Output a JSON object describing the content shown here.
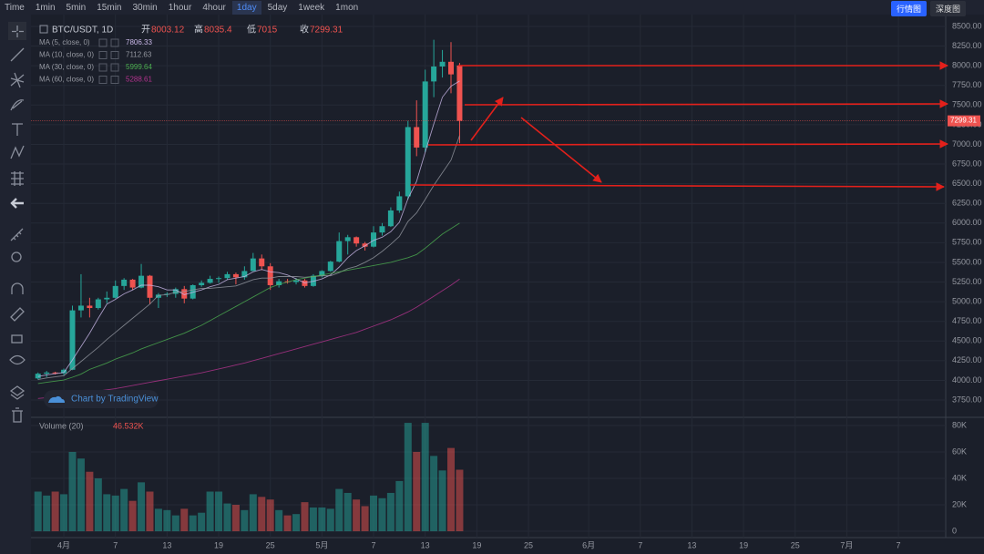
{
  "toolbar": {
    "intervals": [
      "Time",
      "1min",
      "5min",
      "15min",
      "30min",
      "1hour",
      "4hour",
      "1day",
      "5day",
      "1week",
      "1mon"
    ],
    "active": 7,
    "views": [
      "行情图",
      "深度图"
    ]
  },
  "chart_data": {
    "type": "candlestick",
    "title": "BTC/USDT, 1D",
    "ohlc_labels": [
      "开",
      "高",
      "低",
      "收"
    ],
    "up_color": "#26a69a",
    "down_color": "#ef5350",
    "grid": true,
    "x": [
      0,
      1,
      2,
      3,
      4,
      5,
      6,
      7,
      8,
      9,
      10,
      11,
      12,
      13,
      14,
      15,
      16,
      17,
      18,
      19,
      20,
      21,
      22,
      23,
      24,
      25,
      26,
      27,
      28,
      29,
      30,
      31,
      32,
      33,
      34,
      35,
      36,
      37,
      38,
      39,
      40,
      41,
      42,
      43,
      44,
      45,
      46,
      47,
      48,
      49
    ],
    "candles": [
      [
        4025,
        4100,
        4010,
        4085
      ],
      [
        4085,
        4120,
        4040,
        4100
      ],
      [
        4100,
        4110,
        4075,
        4090
      ],
      [
        4090,
        4150,
        4065,
        4135
      ],
      [
        4135,
        4950,
        4130,
        4890
      ],
      [
        4890,
        5350,
        4800,
        4950
      ],
      [
        4950,
        5050,
        4800,
        4920
      ],
      [
        4920,
        5050,
        4900,
        5030
      ],
      [
        5030,
        5130,
        4980,
        5050
      ],
      [
        5050,
        5270,
        5040,
        5200
      ],
      [
        5200,
        5300,
        5150,
        5280
      ],
      [
        5280,
        5290,
        5150,
        5180
      ],
      [
        5180,
        5480,
        5170,
        5330
      ],
      [
        5330,
        5340,
        4970,
        5050
      ],
      [
        5050,
        5110,
        4920,
        5090
      ],
      [
        5090,
        5120,
        5060,
        5100
      ],
      [
        5100,
        5180,
        5050,
        5160
      ],
      [
        5160,
        5200,
        4980,
        5040
      ],
      [
        5040,
        5220,
        5030,
        5210
      ],
      [
        5210,
        5270,
        5190,
        5240
      ],
      [
        5240,
        5330,
        5230,
        5290
      ],
      [
        5290,
        5320,
        5240,
        5300
      ],
      [
        5300,
        5380,
        5280,
        5350
      ],
      [
        5350,
        5370,
        5220,
        5310
      ],
      [
        5310,
        5450,
        5280,
        5390
      ],
      [
        5390,
        5620,
        5390,
        5550
      ],
      [
        5550,
        5600,
        5400,
        5450
      ],
      [
        5450,
        5490,
        5150,
        5210
      ],
      [
        5210,
        5290,
        5180,
        5260
      ],
      [
        5260,
        5290,
        5230,
        5250
      ],
      [
        5250,
        5300,
        5220,
        5270
      ],
      [
        5270,
        5290,
        5180,
        5200
      ],
      [
        5200,
        5350,
        5190,
        5330
      ],
      [
        5330,
        5400,
        5310,
        5390
      ],
      [
        5390,
        5520,
        5380,
        5510
      ],
      [
        5510,
        5880,
        5500,
        5770
      ],
      [
        5770,
        5850,
        5600,
        5820
      ],
      [
        5820,
        5830,
        5700,
        5740
      ],
      [
        5740,
        5760,
        5650,
        5700
      ],
      [
        5700,
        5960,
        5690,
        5880
      ],
      [
        5880,
        6000,
        5840,
        5960
      ],
      [
        5960,
        6200,
        5950,
        6160
      ],
      [
        6160,
        6400,
        6130,
        6340
      ],
      [
        6340,
        7300,
        6300,
        7220
      ],
      [
        7220,
        7560,
        6850,
        6960
      ],
      [
        6960,
        7950,
        6900,
        7800
      ],
      [
        7800,
        8330,
        7600,
        7990
      ],
      [
        7990,
        8200,
        7850,
        8050
      ],
      [
        8050,
        8300,
        7650,
        7890
      ],
      [
        8003.12,
        8035.4,
        7015.0,
        7299.31
      ]
    ],
    "xlim": [
      -0.5,
      105.5
    ],
    "xticks": [
      {
        "value": 3,
        "label": "4月"
      },
      {
        "value": 9,
        "label": "7"
      },
      {
        "value": 15,
        "label": "13"
      },
      {
        "value": 21,
        "label": "19"
      },
      {
        "value": 27,
        "label": "25"
      },
      {
        "value": 33,
        "label": "5月"
      },
      {
        "value": 39,
        "label": "7"
      },
      {
        "value": 45,
        "label": "13"
      },
      {
        "value": 51,
        "label": "19"
      },
      {
        "value": 57,
        "label": "25"
      },
      {
        "value": 64,
        "label": "6月"
      },
      {
        "value": 70,
        "label": "7"
      },
      {
        "value": 76,
        "label": "13"
      },
      {
        "value": 82,
        "label": "19"
      },
      {
        "value": 88,
        "label": "25"
      },
      {
        "value": 94,
        "label": "7月"
      },
      {
        "value": 100,
        "label": "7"
      }
    ],
    "ylim": [
      3565,
      8627
    ],
    "yticks": [
      {
        "value": 3750,
        "label": "3750.00"
      },
      {
        "value": 4000,
        "label": "4000.00"
      },
      {
        "value": 4250,
        "label": "4250.00"
      },
      {
        "value": 4500,
        "label": "4500.00"
      },
      {
        "value": 4750,
        "label": "4750.00"
      },
      {
        "value": 5000,
        "label": "5000.00"
      },
      {
        "value": 5250,
        "label": "5250.00"
      },
      {
        "value": 5500,
        "label": "5500.00"
      },
      {
        "value": 5750,
        "label": "5750.00"
      },
      {
        "value": 6000,
        "label": "6000.00"
      },
      {
        "value": 6250,
        "label": "6250.00"
      },
      {
        "value": 6500,
        "label": "6500.00"
      },
      {
        "value": 6750,
        "label": "6750.00"
      },
      {
        "value": 7000,
        "label": "7000.00"
      },
      {
        "value": 7250,
        "label": "7250.00"
      },
      {
        "value": 7500,
        "label": "7500.00"
      },
      {
        "value": 7750,
        "label": "7750.00"
      },
      {
        "value": 8000,
        "label": "8000.00"
      },
      {
        "value": 8250,
        "label": "8250.00"
      },
      {
        "value": 8500,
        "label": "8500.00"
      }
    ],
    "ma": [
      {
        "name": "MA (5, close, 0)",
        "color": "#c9b8e8",
        "values": [
          4050,
          4070,
          4085,
          4100,
          4260,
          4430,
          4600,
          4790,
          4970,
          5030,
          5100,
          5150,
          5210,
          5210,
          5190,
          5150,
          5150,
          5090,
          5120,
          5150,
          5190,
          5220,
          5280,
          5300,
          5320,
          5380,
          5410,
          5380,
          5370,
          5340,
          5290,
          5240,
          5260,
          5290,
          5340,
          5440,
          5560,
          5650,
          5710,
          5780,
          5820,
          5890,
          6010,
          6310,
          6530,
          6900,
          7260,
          7600,
          7740,
          7806.33
        ]
      },
      {
        "name": "MA (10, close, 0)",
        "color": "#9598a1",
        "values": [
          4010,
          4030,
          4045,
          4060,
          4150,
          4240,
          4330,
          4420,
          4520,
          4610,
          4700,
          4790,
          4880,
          4970,
          5080,
          5090,
          5120,
          5130,
          5150,
          5170,
          5170,
          5180,
          5190,
          5200,
          5240,
          5280,
          5300,
          5300,
          5320,
          5320,
          5320,
          5310,
          5320,
          5330,
          5330,
          5370,
          5420,
          5450,
          5500,
          5560,
          5640,
          5730,
          5830,
          6020,
          6130,
          6300,
          6480,
          6640,
          6800,
          7112.63
        ]
      },
      {
        "name": "MA (30, close, 0)",
        "color": "#4caf50",
        "values": [
          3960,
          3975,
          3990,
          4005,
          4040,
          4080,
          4140,
          4180,
          4220,
          4270,
          4310,
          4350,
          4400,
          4440,
          4480,
          4520,
          4560,
          4600,
          4650,
          4700,
          4760,
          4820,
          4880,
          4940,
          5000,
          5060,
          5120,
          5180,
          5220,
          5250,
          5280,
          5300,
          5320,
          5340,
          5360,
          5380,
          5400,
          5420,
          5440,
          5460,
          5480,
          5500,
          5530,
          5560,
          5600,
          5680,
          5770,
          5860,
          5930,
          5999.64
        ]
      },
      {
        "name": "MA (60, close, 0)",
        "color": "#b5338f",
        "values": [
          3770,
          3780,
          3790,
          3800,
          3815,
          3830,
          3850,
          3865,
          3880,
          3895,
          3915,
          3935,
          3955,
          3975,
          3995,
          4015,
          4035,
          4055,
          4075,
          4095,
          4120,
          4145,
          4170,
          4195,
          4220,
          4250,
          4280,
          4310,
          4340,
          4370,
          4400,
          4430,
          4460,
          4490,
          4520,
          4550,
          4580,
          4610,
          4650,
          4690,
          4730,
          4770,
          4820,
          4870,
          4930,
          5000,
          5070,
          5140,
          5210,
          5288.61
        ]
      }
    ],
    "watermark": "Chart by TradingView",
    "volume": {
      "title": "Volume (20)",
      "last_label": "46.532K",
      "values": [
        30000,
        27000,
        30000,
        28000,
        60000,
        55000,
        45000,
        40000,
        28000,
        27000,
        32000,
        23000,
        37000,
        30000,
        17000,
        16000,
        12000,
        17000,
        12000,
        14000,
        30000,
        30000,
        21000,
        20000,
        16000,
        28000,
        26000,
        24000,
        16000,
        12000,
        13000,
        22000,
        18000,
        18000,
        17000,
        32000,
        29000,
        24000,
        19000,
        27000,
        25000,
        29000,
        38000,
        82000,
        60000,
        82000,
        57000,
        46000,
        63000,
        46532
      ],
      "ylim": [
        -4800,
        84800
      ],
      "yticks": [
        0,
        {
          "value": 20000,
          "label": "20K"
        },
        {
          "value": 40000,
          "label": "40K"
        },
        {
          "value": 60000,
          "label": "60K"
        },
        {
          "value": 80000,
          "label": "80K"
        }
      ]
    }
  }
}
